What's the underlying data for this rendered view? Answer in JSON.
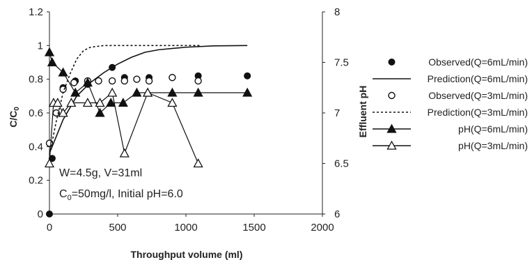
{
  "chart_data": {
    "type": "line",
    "xlabel": "Throughput volume (ml)",
    "ylabel": "C/C",
    "ylabel_sub": "0",
    "y2label": "Effluent pH",
    "xlim": [
      0,
      2000
    ],
    "ylim": [
      0,
      1.2
    ],
    "y2lim": [
      6,
      8
    ],
    "xticks": [
      "0",
      "500",
      "1000",
      "1500",
      "2000"
    ],
    "yticks": [
      "0",
      "0.2",
      "0.4",
      "0.6",
      "0.8",
      "1",
      "1.2"
    ],
    "y2ticks": [
      "6",
      "6.5",
      "7",
      "7.5",
      "8"
    ],
    "grid": false,
    "legend_position": "right",
    "annotations": {
      "line1": "W=4.5g, V=31ml",
      "line2_prefix": "C",
      "line2_sub": "0",
      "line2_rest": "=50mg/l, Initial pH=6.0"
    },
    "series": [
      {
        "name": "Observed(Q=6mL/min)",
        "axis": "left",
        "style": "filled-circle",
        "x": [
          0,
          20,
          100,
          190,
          280,
          360,
          460,
          550,
          640,
          730,
          900,
          1090,
          1450
        ],
        "y": [
          0,
          0.33,
          0.75,
          0.79,
          0.77,
          0.79,
          0.87,
          0.81,
          0.8,
          0.81,
          0.81,
          0.82,
          0.82
        ]
      },
      {
        "name": "Prediction(Q=6mL/min)",
        "axis": "left",
        "style": "solid-line",
        "x": [
          0,
          100,
          200,
          300,
          400,
          500,
          600,
          700,
          800,
          1000,
          1200,
          1450
        ],
        "y": [
          0.36,
          0.56,
          0.7,
          0.78,
          0.84,
          0.89,
          0.93,
          0.96,
          0.975,
          0.99,
          0.998,
          1.0
        ]
      },
      {
        "name": "Observed(Q=3mL/min)",
        "axis": "left",
        "style": "open-circle",
        "x": [
          0,
          50,
          100,
          180,
          280,
          360,
          460,
          550,
          640,
          730,
          900,
          1090
        ],
        "y": [
          0.42,
          0.6,
          0.74,
          0.78,
          0.79,
          0.79,
          0.79,
          0.79,
          0.8,
          0.79,
          0.81,
          0.79
        ]
      },
      {
        "name": "Prediction(Q=3mL/min)",
        "axis": "left",
        "style": "dashed-line",
        "x": [
          0,
          50,
          100,
          150,
          200,
          250,
          300,
          400,
          450,
          1100
        ],
        "y": [
          0.35,
          0.55,
          0.72,
          0.83,
          0.92,
          0.97,
          0.99,
          1.0,
          1.0,
          1.0
        ]
      },
      {
        "name": "pH(Q=6mL/min)",
        "axis": "right",
        "style": "filled-triangle",
        "x": [
          0,
          20,
          100,
          190,
          280,
          370,
          450,
          540,
          640,
          720,
          900,
          1090,
          1450
        ],
        "y": [
          7.6,
          7.5,
          7.4,
          7.2,
          7.3,
          7.0,
          7.1,
          7.1,
          7.2,
          7.2,
          7.2,
          7.2,
          7.2
        ]
      },
      {
        "name": "pH(Q=3mL/min)",
        "axis": "right",
        "style": "open-triangle",
        "x": [
          0,
          30,
          60,
          100,
          160,
          280,
          370,
          460,
          550,
          720,
          900,
          1090
        ],
        "y": [
          6.5,
          7.1,
          7.1,
          7.0,
          7.1,
          7.1,
          7.1,
          7.2,
          6.6,
          7.2,
          7.1,
          6.5
        ]
      }
    ]
  }
}
